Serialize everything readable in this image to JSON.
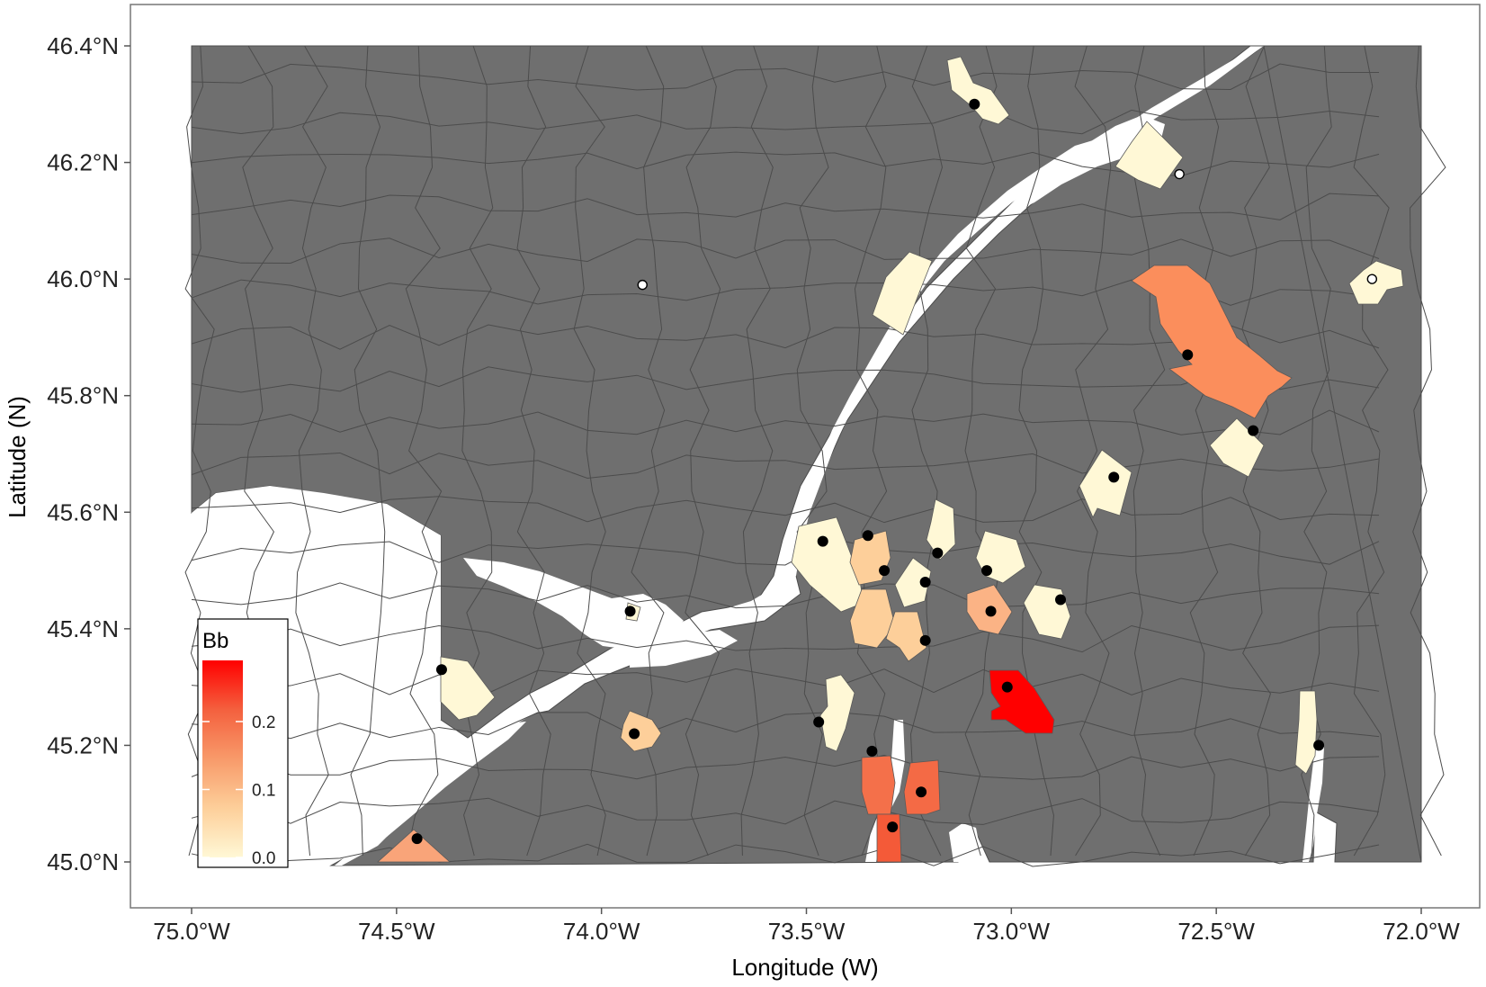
{
  "chart_data": {
    "type": "choropleth map",
    "xlabel": "Longitude (W)",
    "ylabel": "Latitude (N)",
    "xlim": [
      -75.0,
      -72.0
    ],
    "ylim": [
      45.0,
      46.4
    ],
    "x_ticks": [
      {
        "value": -75.0,
        "label": "75.0°W"
      },
      {
        "value": -74.5,
        "label": "74.5°W"
      },
      {
        "value": -74.0,
        "label": "74.0°W"
      },
      {
        "value": -73.5,
        "label": "73.5°W"
      },
      {
        "value": -73.0,
        "label": "73.0°W"
      },
      {
        "value": -72.5,
        "label": "72.5°W"
      },
      {
        "value": -72.0,
        "label": "72.0°W"
      }
    ],
    "y_ticks": [
      {
        "value": 45.0,
        "label": "45.0°N"
      },
      {
        "value": 45.2,
        "label": "45.2°N"
      },
      {
        "value": 45.4,
        "label": "45.4°N"
      },
      {
        "value": 45.6,
        "label": "45.6°N"
      },
      {
        "value": 45.8,
        "label": "45.8°N"
      },
      {
        "value": 46.0,
        "label": "46.0°N"
      },
      {
        "value": 46.2,
        "label": "46.2°N"
      },
      {
        "value": 46.4,
        "label": "46.4°N"
      }
    ],
    "legend": {
      "title": "Bb",
      "position": "bottom-left",
      "range": [
        0.0,
        0.29
      ],
      "ticks": [
        {
          "value": 0.0,
          "label": "0.0"
        },
        {
          "value": 0.1,
          "label": "0.1"
        },
        {
          "value": 0.2,
          "label": "0.2"
        }
      ],
      "colors": [
        "#fff8d6",
        "#fdcf9a",
        "#f89a6a",
        "#f4603e",
        "#ff0000"
      ]
    },
    "colors": {
      "panel_border": "#777777",
      "land": "#6f6f6f",
      "water": "#ffffff",
      "boundary": "#4c4c4c",
      "site_positive": "#000000",
      "site_negative": "#ffffff"
    },
    "sites": [
      {
        "lon": -73.09,
        "lat": 46.3,
        "bb": 0.0,
        "status": "positive"
      },
      {
        "lon": -72.59,
        "lat": 46.18,
        "bb": 0.0,
        "status": "negative"
      },
      {
        "lon": -73.9,
        "lat": 45.99,
        "bb": 0.0,
        "status": "negative"
      },
      {
        "lon": -72.12,
        "lat": 46.0,
        "bb": 0.0,
        "status": "negative"
      },
      {
        "lon": -72.57,
        "lat": 45.87,
        "bb": 0.17,
        "status": "positive"
      },
      {
        "lon": -72.41,
        "lat": 45.74,
        "bb": 0.0,
        "status": "positive"
      },
      {
        "lon": -72.75,
        "lat": 45.66,
        "bb": 0.0,
        "status": "positive"
      },
      {
        "lon": -73.18,
        "lat": 45.53,
        "bb": 0.0,
        "status": "positive"
      },
      {
        "lon": -73.46,
        "lat": 45.55,
        "bb": 0.0,
        "status": "positive"
      },
      {
        "lon": -73.35,
        "lat": 45.56,
        "bb": 0.08,
        "status": "positive"
      },
      {
        "lon": -73.31,
        "lat": 45.5,
        "bb": 0.09,
        "status": "positive"
      },
      {
        "lon": -73.21,
        "lat": 45.48,
        "bb": 0.0,
        "status": "positive"
      },
      {
        "lon": -73.06,
        "lat": 45.5,
        "bb": 0.0,
        "status": "positive"
      },
      {
        "lon": -72.88,
        "lat": 45.45,
        "bb": 0.0,
        "status": "positive"
      },
      {
        "lon": -73.05,
        "lat": 45.43,
        "bb": 0.11,
        "status": "positive"
      },
      {
        "lon": -73.21,
        "lat": 45.38,
        "bb": 0.09,
        "status": "positive"
      },
      {
        "lon": -73.93,
        "lat": 45.43,
        "bb": 0.0,
        "status": "positive"
      },
      {
        "lon": -74.39,
        "lat": 45.33,
        "bb": 0.0,
        "status": "positive"
      },
      {
        "lon": -73.01,
        "lat": 45.3,
        "bb": 0.29,
        "status": "positive"
      },
      {
        "lon": -73.47,
        "lat": 45.24,
        "bb": 0.0,
        "status": "positive"
      },
      {
        "lon": -73.92,
        "lat": 45.22,
        "bb": 0.1,
        "status": "positive"
      },
      {
        "lon": -72.25,
        "lat": 45.2,
        "bb": 0.0,
        "status": "positive"
      },
      {
        "lon": -73.34,
        "lat": 45.19,
        "bb": 0.2,
        "status": "positive"
      },
      {
        "lon": -73.22,
        "lat": 45.12,
        "bb": 0.21,
        "status": "positive"
      },
      {
        "lon": -73.29,
        "lat": 45.06,
        "bb": 0.22,
        "status": "positive"
      },
      {
        "lon": -74.45,
        "lat": 45.04,
        "bb": 0.12,
        "status": "positive"
      }
    ]
  }
}
